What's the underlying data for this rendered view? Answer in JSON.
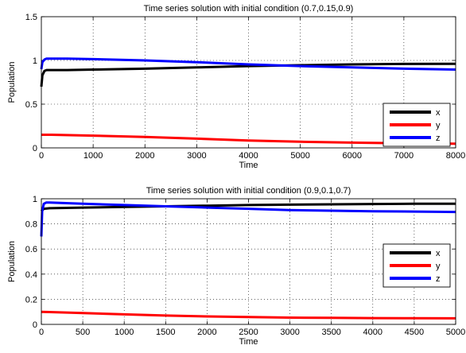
{
  "chart_data": [
    {
      "type": "line",
      "title": "Time series solution with initial condition (0.7,0.15,0.9)",
      "xlabel": "Time",
      "ylabel": "Population",
      "xlim": [
        0,
        8000
      ],
      "ylim": [
        0,
        1.5
      ],
      "xticks": [
        "0",
        "1000",
        "2000",
        "3000",
        "4000",
        "5000",
        "6000",
        "7000",
        "8000"
      ],
      "yticks": [
        "0",
        "0.5",
        "1",
        "1.5"
      ],
      "grid": true,
      "legend_position": "right",
      "series": [
        {
          "name": "x",
          "color": "#000000",
          "x": [
            0,
            20,
            60,
            100,
            500,
            1000,
            2000,
            3000,
            4000,
            5000,
            6000,
            7000,
            8000
          ],
          "y": [
            0.7,
            0.83,
            0.88,
            0.89,
            0.89,
            0.895,
            0.905,
            0.92,
            0.935,
            0.945,
            0.955,
            0.96,
            0.962
          ]
        },
        {
          "name": "y",
          "color": "#ff0000",
          "x": [
            0,
            200,
            1000,
            2000,
            3000,
            4000,
            5000,
            6000,
            7000,
            8000
          ],
          "y": [
            0.15,
            0.15,
            0.14,
            0.125,
            0.105,
            0.085,
            0.07,
            0.06,
            0.052,
            0.048
          ]
        },
        {
          "name": "z",
          "color": "#0000ff",
          "x": [
            0,
            20,
            60,
            100,
            500,
            1000,
            2000,
            3000,
            4000,
            5000,
            6000,
            7000,
            8000
          ],
          "y": [
            0.9,
            0.98,
            1.01,
            1.02,
            1.02,
            1.015,
            1.0,
            0.98,
            0.955,
            0.935,
            0.92,
            0.905,
            0.895
          ]
        }
      ]
    },
    {
      "type": "line",
      "title": "Time series solution with initial condition (0.9,0.1,0.7)",
      "xlabel": "Time",
      "ylabel": "Population",
      "xlim": [
        0,
        5000
      ],
      "ylim": [
        0,
        1
      ],
      "xticks": [
        "0",
        "500",
        "1000",
        "1500",
        "2000",
        "2500",
        "3000",
        "3500",
        "4000",
        "4500",
        "5000"
      ],
      "yticks": [
        "0",
        "0.2",
        "0.4",
        "0.6",
        "0.8",
        "1"
      ],
      "grid": true,
      "legend_position": "right",
      "series": [
        {
          "name": "x",
          "color": "#000000",
          "x": [
            0,
            30,
            100,
            500,
            1000,
            1500,
            2000,
            2500,
            3000,
            3500,
            4000,
            4500,
            5000
          ],
          "y": [
            0.9,
            0.92,
            0.925,
            0.93,
            0.935,
            0.94,
            0.945,
            0.95,
            0.953,
            0.956,
            0.958,
            0.96,
            0.96
          ]
        },
        {
          "name": "y",
          "color": "#ff0000",
          "x": [
            0,
            100,
            500,
            1000,
            1500,
            2000,
            2500,
            3000,
            3500,
            4000,
            4500,
            5000
          ],
          "y": [
            0.1,
            0.098,
            0.09,
            0.08,
            0.07,
            0.063,
            0.058,
            0.054,
            0.052,
            0.05,
            0.049,
            0.048
          ]
        },
        {
          "name": "z",
          "color": "#0000ff",
          "x": [
            0,
            10,
            30,
            60,
            100,
            500,
            1000,
            1500,
            2000,
            2500,
            3000,
            3500,
            4000,
            4500,
            5000
          ],
          "y": [
            0.7,
            0.9,
            0.96,
            0.97,
            0.97,
            0.96,
            0.95,
            0.94,
            0.93,
            0.92,
            0.91,
            0.905,
            0.9,
            0.898,
            0.895
          ]
        }
      ]
    }
  ]
}
